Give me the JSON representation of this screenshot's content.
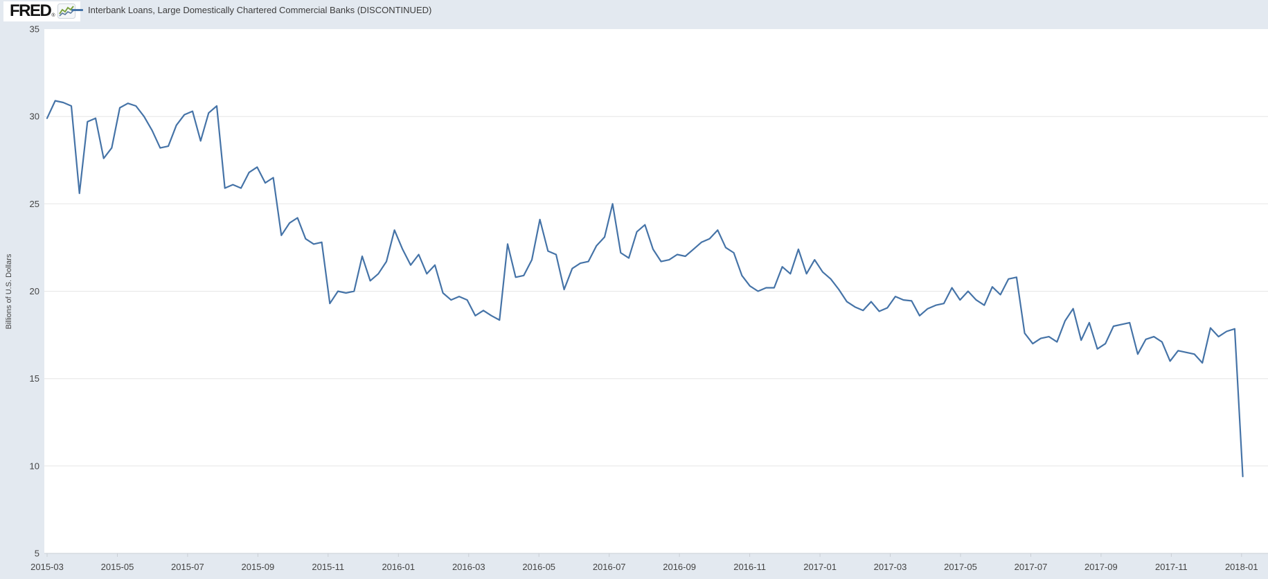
{
  "header": {
    "logo_text": "FRED",
    "logo_registered": "®",
    "legend_marker": "—",
    "series_title": "Interbank Loans, Large Domestically Chartered Commercial Banks (DISCONTINUED)"
  },
  "colors": {
    "background": "#e3e9f0",
    "plot_background": "#ffffff",
    "gridline": "#e6e6e6",
    "axis_line": "#c9ced4",
    "tick_text": "#444444",
    "line": "#4573a7",
    "logo_icon_green": "#7aa23e",
    "logo_icon_blue": "#5b7b9d"
  },
  "chart_data": {
    "type": "line",
    "title": "Interbank Loans, Large Domestically Chartered Commercial Banks (DISCONTINUED)",
    "ylabel": "Billions of U.S. Dollars",
    "xlabel": "",
    "ylim": [
      5,
      35
    ],
    "y_ticks": [
      5,
      10,
      15,
      20,
      25,
      30,
      35
    ],
    "x_tick_labels": [
      "2015-03",
      "2015-05",
      "2015-07",
      "2015-09",
      "2015-11",
      "2016-01",
      "2016-03",
      "2016-05",
      "2016-07",
      "2016-09",
      "2016-11",
      "2017-01",
      "2017-03",
      "2017-05",
      "2017-07",
      "2017-09",
      "2017-11",
      "2018-01"
    ],
    "x_start": "2015-03",
    "x_end": "2018-01",
    "frequency": "weekly",
    "grid": "horizontal",
    "legend_position": "top-left",
    "values": [
      29.9,
      30.9,
      30.8,
      30.6,
      25.6,
      29.7,
      29.9,
      27.6,
      28.2,
      30.5,
      30.75,
      30.6,
      30.0,
      29.2,
      28.2,
      28.3,
      29.5,
      30.1,
      30.3,
      28.6,
      30.2,
      30.6,
      25.9,
      26.1,
      25.9,
      26.8,
      27.1,
      26.2,
      26.5,
      23.2,
      23.9,
      24.2,
      23.0,
      22.7,
      22.8,
      19.3,
      20.0,
      19.9,
      20.0,
      22.0,
      20.6,
      21.0,
      21.7,
      23.5,
      22.4,
      21.5,
      22.1,
      21.0,
      21.5,
      19.9,
      19.5,
      19.7,
      19.5,
      18.6,
      18.9,
      18.6,
      18.35,
      22.7,
      20.8,
      20.9,
      21.8,
      24.1,
      22.3,
      22.1,
      20.1,
      21.3,
      21.6,
      21.7,
      22.6,
      23.1,
      25.0,
      22.2,
      21.9,
      23.4,
      23.8,
      22.4,
      21.7,
      21.8,
      22.1,
      22.0,
      22.4,
      22.8,
      23.0,
      23.5,
      22.5,
      22.2,
      20.9,
      20.3,
      20.0,
      20.2,
      20.2,
      21.4,
      21.0,
      22.4,
      21.0,
      21.8,
      21.1,
      20.7,
      20.1,
      19.4,
      19.1,
      18.9,
      19.4,
      18.85,
      19.05,
      19.7,
      19.5,
      19.45,
      18.6,
      19.0,
      19.2,
      19.3,
      20.2,
      19.5,
      20.0,
      19.5,
      19.2,
      20.25,
      19.8,
      20.7,
      20.8,
      17.6,
      17.0,
      17.3,
      17.4,
      17.1,
      18.3,
      19.0,
      17.2,
      18.2,
      16.7,
      17.0,
      18.0,
      18.1,
      18.2,
      16.4,
      17.25,
      17.4,
      17.1,
      16.0,
      16.6,
      16.5,
      16.4,
      15.9,
      17.9,
      17.4,
      17.7,
      17.85,
      9.4
    ]
  }
}
